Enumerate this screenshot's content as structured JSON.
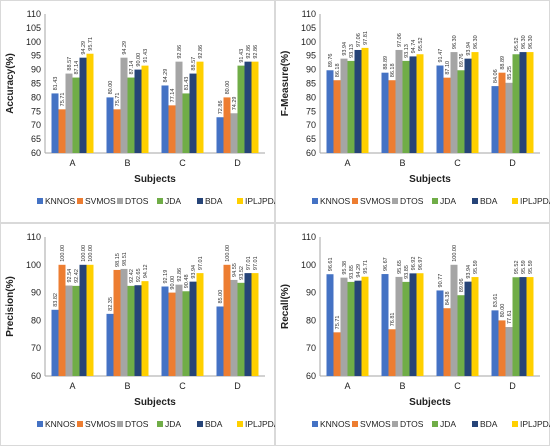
{
  "chart_data": [
    {
      "type": "bar",
      "categories": [
        "A",
        "B",
        "C",
        "D"
      ],
      "series": [
        {
          "name": "KNNOS",
          "values": [
            81.43,
            80.0,
            84.29,
            72.86
          ]
        },
        {
          "name": "SVMOS",
          "values": [
            75.71,
            75.71,
            77.14,
            80.0
          ]
        },
        {
          "name": "DTOS",
          "values": [
            88.57,
            94.29,
            92.86,
            74.29
          ]
        },
        {
          "name": "JDA",
          "values": [
            87.14,
            87.14,
            81.43,
            91.43
          ]
        },
        {
          "name": "BDA",
          "values": [
            94.29,
            90.0,
            88.57,
            92.86
          ]
        },
        {
          "name": "IPLJPDA",
          "values": [
            95.71,
            91.43,
            92.86,
            92.86
          ]
        }
      ],
      "xlabel": "Subjects",
      "ylabel": "Accuracy(%)",
      "ylim": [
        60,
        110
      ],
      "yticks": [
        60,
        65,
        70,
        75,
        80,
        85,
        90,
        95,
        100,
        105,
        110
      ],
      "grid": false,
      "legend": "bottom"
    },
    {
      "type": "bar",
      "categories": [
        "A",
        "B",
        "C",
        "D"
      ],
      "series": [
        {
          "name": "KNNOS",
          "values": [
            89.76,
            88.89,
            91.47,
            84.06
          ]
        },
        {
          "name": "SVMOS",
          "values": [
            86.18,
            86.18,
            87.1,
            88.89
          ]
        },
        {
          "name": "DTOS",
          "values": [
            93.94,
            97.06,
            96.3,
            85.25
          ]
        },
        {
          "name": "JDA",
          "values": [
            93.13,
            93.13,
            89.76,
            95.52
          ]
        },
        {
          "name": "BDA",
          "values": [
            97.06,
            94.74,
            93.94,
            96.3
          ]
        },
        {
          "name": "IPLJPDA",
          "values": [
            97.81,
            95.52,
            96.3,
            96.3
          ]
        }
      ],
      "xlabel": "Subjects",
      "ylabel": "F-Measure(%)",
      "ylim": [
        60,
        110
      ],
      "yticks": [
        60,
        65,
        70,
        75,
        80,
        85,
        90,
        95,
        100,
        105,
        110
      ],
      "grid": false,
      "legend": "bottom"
    },
    {
      "type": "bar",
      "categories": [
        "A",
        "B",
        "C",
        "D"
      ],
      "series": [
        {
          "name": "KNNOS",
          "values": [
            83.82,
            82.35,
            92.19,
            85.0
          ]
        },
        {
          "name": "SVMOS",
          "values": [
            100.0,
            98.15,
            90.0,
            100.0
          ]
        },
        {
          "name": "DTOS",
          "values": [
            92.54,
            98.51,
            92.86,
            94.55
          ]
        },
        {
          "name": "JDA",
          "values": [
            92.42,
            92.42,
            90.48,
            93.52
          ]
        },
        {
          "name": "BDA",
          "values": [
            100.0,
            92.65,
            93.94,
            97.01
          ]
        },
        {
          "name": "IPLJPDA",
          "values": [
            100.0,
            94.12,
            97.01,
            97.01
          ]
        }
      ],
      "xlabel": "Subjects",
      "ylabel": "Precision(%)",
      "ylim": [
        60,
        110
      ],
      "yticks": [
        60,
        70,
        80,
        90,
        100,
        110
      ],
      "grid": false,
      "legend": "bottom"
    },
    {
      "type": "bar",
      "categories": [
        "A",
        "B",
        "C",
        "D"
      ],
      "series": [
        {
          "name": "KNNOS",
          "values": [
            96.61,
            96.67,
            90.77,
            83.61
          ]
        },
        {
          "name": "SVMOS",
          "values": [
            75.71,
            76.81,
            84.38,
            80.0
          ]
        },
        {
          "name": "DTOS",
          "values": [
            95.38,
            95.65,
            100.0,
            77.61
          ]
        },
        {
          "name": "JDA",
          "values": [
            93.85,
            93.85,
            89.06,
            95.52
          ]
        },
        {
          "name": "BDA",
          "values": [
            94.29,
            96.92,
            93.94,
            95.59
          ]
        },
        {
          "name": "IPLJPDA",
          "values": [
            95.71,
            96.97,
            95.59,
            95.59
          ]
        }
      ],
      "xlabel": "Subjects",
      "ylabel": "Recall(%)",
      "ylim": [
        60,
        110
      ],
      "yticks": [
        60,
        70,
        80,
        90,
        100,
        110
      ],
      "grid": false,
      "legend": "bottom"
    }
  ],
  "colors": [
    "#4472c4",
    "#ed7d31",
    "#a5a5a5",
    "#70ad47",
    "#264478",
    "#ffd000"
  ]
}
